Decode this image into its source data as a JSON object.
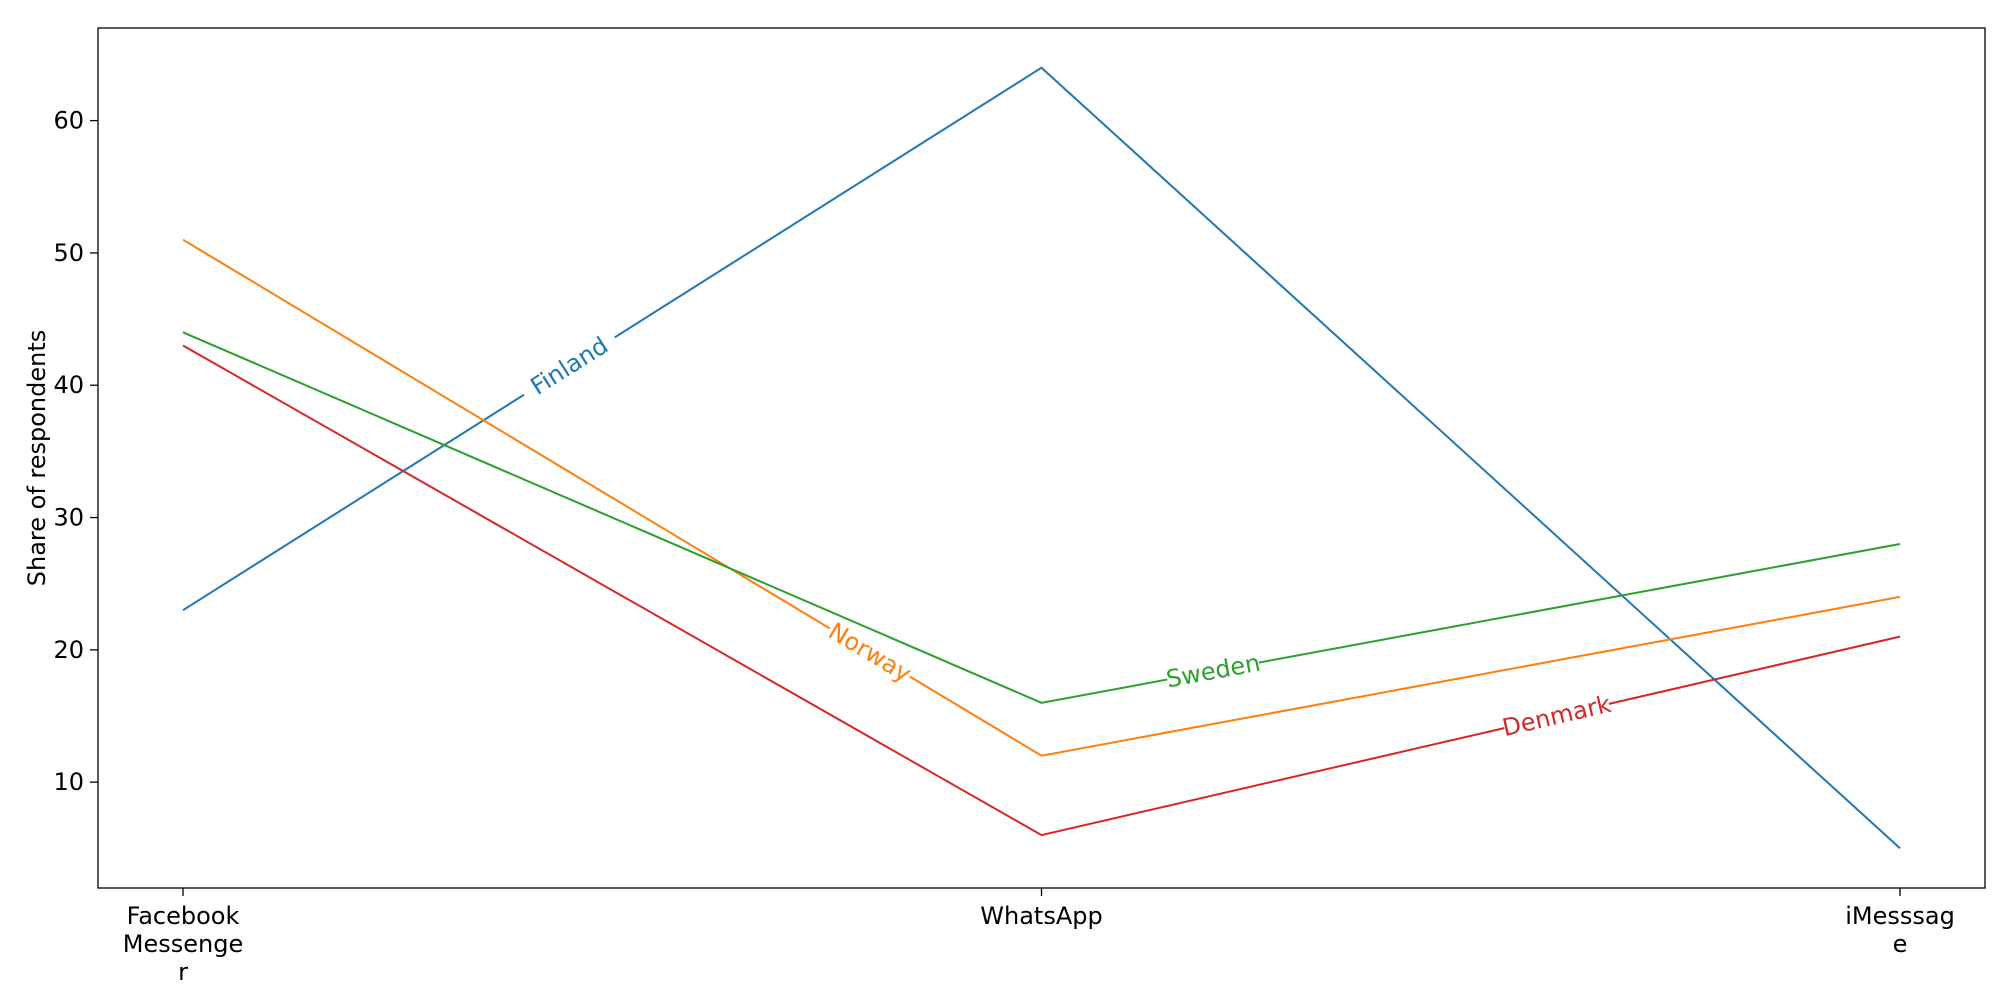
{
  "chart_data": {
    "type": "line",
    "title": "",
    "xlabel": "",
    "ylabel": "Share of respondents",
    "categories": [
      "Facebook\nMessenge\nr",
      "WhatsApp",
      "iMesssag\ne"
    ],
    "ylim": [
      2,
      67
    ],
    "yticks": [
      10,
      20,
      30,
      40,
      50,
      60
    ],
    "grid": false,
    "legend": "none (inline line labels)",
    "series": [
      {
        "name": "Finland",
        "color": "#1f77b4",
        "values": [
          23,
          64,
          5
        ],
        "label_position": 0.45
      },
      {
        "name": "Norway",
        "color": "#ff7f0e",
        "values": [
          51,
          12,
          24
        ],
        "label_position": 0.8
      },
      {
        "name": "Sweden",
        "color": "#2ca02c",
        "values": [
          44,
          16,
          28
        ],
        "label_position": 1.2
      },
      {
        "name": "Denmark",
        "color": "#d62728",
        "values": [
          43,
          6,
          21
        ],
        "label_position": 1.6
      }
    ]
  }
}
